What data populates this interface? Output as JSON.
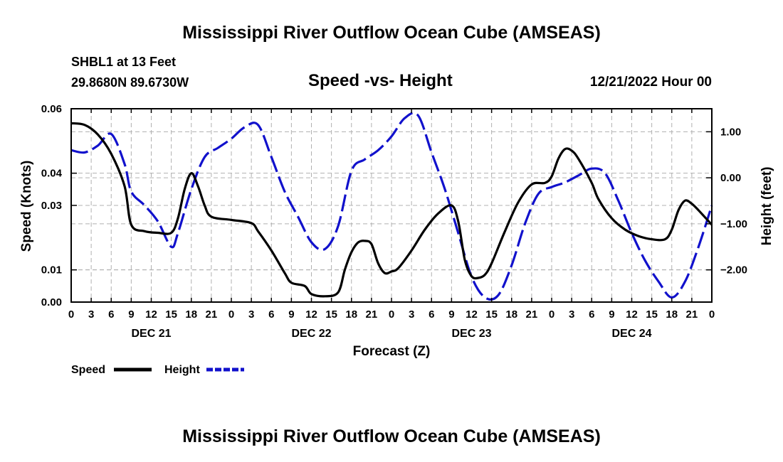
{
  "page": {
    "title": "Mississippi River Outflow Ocean Cube (AMSEAS)",
    "footer_title": "Mississippi River Outflow Ocean Cube (AMSEAS)",
    "station_line": "SHBL1 at 13 Feet",
    "coords_line": "29.8680N  89.6730W",
    "subtitle": "Speed -vs- Height",
    "datetime": "12/21/2022 Hour 00"
  },
  "legend": [
    {
      "name": "Speed",
      "color": "#000000",
      "style": "solid"
    },
    {
      "name": "Height",
      "color": "#1111cc",
      "style": "dashed"
    }
  ],
  "chart_data": {
    "type": "line",
    "title": "Speed -vs- Height",
    "xlabel": "Forecast (Z)",
    "ylabel": "Speed (Knots)",
    "y2label": "Height (feet)",
    "xlim": [
      0,
      96
    ],
    "ylim": [
      0,
      0.06
    ],
    "y2lim": [
      -2.7,
      1.5
    ],
    "x_tick_hours": [
      0,
      3,
      6,
      9,
      12,
      15,
      18,
      21,
      24,
      27,
      30,
      33,
      36,
      39,
      42,
      45,
      48,
      51,
      54,
      57,
      60,
      63,
      66,
      69,
      72,
      75,
      78,
      81,
      84,
      87,
      90,
      93,
      96
    ],
    "x_tick_labels": [
      "0",
      "3",
      "6",
      "9",
      "12",
      "15",
      "18",
      "21",
      "0",
      "3",
      "6",
      "9",
      "12",
      "15",
      "18",
      "21",
      "0",
      "3",
      "6",
      "9",
      "12",
      "15",
      "18",
      "21",
      "0",
      "3",
      "6",
      "9",
      "12",
      "15",
      "18",
      "21",
      "0"
    ],
    "day_labels": [
      {
        "text": "DEC 21",
        "hour": 12
      },
      {
        "text": "DEC 22",
        "hour": 36
      },
      {
        "text": "DEC 23",
        "hour": 60
      },
      {
        "text": "DEC 24",
        "hour": 84
      }
    ],
    "y_ticks": [
      0.0,
      0.01,
      0.03,
      0.04,
      0.06
    ],
    "y_tick_labels": [
      "0.00",
      "0.01",
      "0.03",
      "0.04",
      "0.06"
    ],
    "y2_ticks": [
      1.0,
      0.0,
      -1.0,
      -2.0
    ],
    "y2_tick_labels": [
      "1.00",
      "0.00",
      "−1.00",
      "−2.00"
    ],
    "series": [
      {
        "name": "Speed",
        "axis": "left",
        "color": "#000000",
        "x": [
          0,
          2,
          4,
          6,
          8,
          9,
          11,
          13,
          15,
          16,
          17,
          18,
          19,
          20,
          21,
          24,
          27,
          28,
          30,
          32,
          33,
          35,
          36,
          38,
          40,
          41,
          42,
          43,
          44,
          45,
          46,
          47,
          48,
          49,
          51,
          53,
          55,
          57,
          58,
          59,
          60,
          61,
          62,
          63,
          65,
          67,
          69,
          71,
          72,
          73,
          74,
          75,
          76,
          78,
          79,
          81,
          83,
          85,
          87,
          89,
          90,
          91,
          92,
          93,
          94,
          96
        ],
        "y": [
          0.0555,
          0.055,
          0.052,
          0.046,
          0.036,
          0.024,
          0.022,
          0.0215,
          0.0215,
          0.026,
          0.035,
          0.04,
          0.036,
          0.03,
          0.0265,
          0.0255,
          0.0245,
          0.022,
          0.016,
          0.009,
          0.006,
          0.005,
          0.0025,
          0.0018,
          0.003,
          0.01,
          0.0155,
          0.0185,
          0.019,
          0.018,
          0.012,
          0.009,
          0.0095,
          0.0105,
          0.016,
          0.0225,
          0.0275,
          0.03,
          0.025,
          0.013,
          0.008,
          0.0075,
          0.0085,
          0.012,
          0.022,
          0.031,
          0.0365,
          0.037,
          0.039,
          0.0445,
          0.0475,
          0.047,
          0.0445,
          0.037,
          0.032,
          0.026,
          0.0225,
          0.0205,
          0.0195,
          0.0195,
          0.0225,
          0.0285,
          0.0315,
          0.0305,
          0.0285,
          0.024
        ]
      },
      {
        "name": "Height",
        "axis": "right",
        "color": "#1111cc",
        "x": [
          0,
          2,
          4,
          6,
          8,
          9,
          11,
          13,
          15,
          16,
          18,
          20,
          22,
          24,
          26,
          28,
          30,
          32,
          34,
          36,
          38,
          40,
          42,
          44,
          46,
          48,
          50,
          52,
          54,
          56,
          58,
          60,
          62,
          64,
          66,
          68,
          70,
          72,
          74,
          76,
          78,
          80,
          82,
          84,
          86,
          88,
          90,
          92,
          94,
          96
        ],
        "y": [
          0.6,
          0.55,
          0.7,
          0.95,
          0.3,
          -0.3,
          -0.6,
          -0.95,
          -1.5,
          -1.2,
          -0.25,
          0.45,
          0.65,
          0.85,
          1.1,
          1.15,
          0.45,
          -0.3,
          -0.85,
          -1.4,
          -1.55,
          -1.05,
          0.15,
          0.4,
          0.6,
          0.9,
          1.3,
          1.35,
          0.55,
          -0.25,
          -1.2,
          -2.15,
          -2.6,
          -2.55,
          -1.9,
          -1.0,
          -0.35,
          -0.2,
          -0.1,
          0.05,
          0.2,
          0.1,
          -0.5,
          -1.2,
          -1.8,
          -2.25,
          -2.6,
          -2.25,
          -1.5,
          -0.6
        ]
      }
    ]
  }
}
